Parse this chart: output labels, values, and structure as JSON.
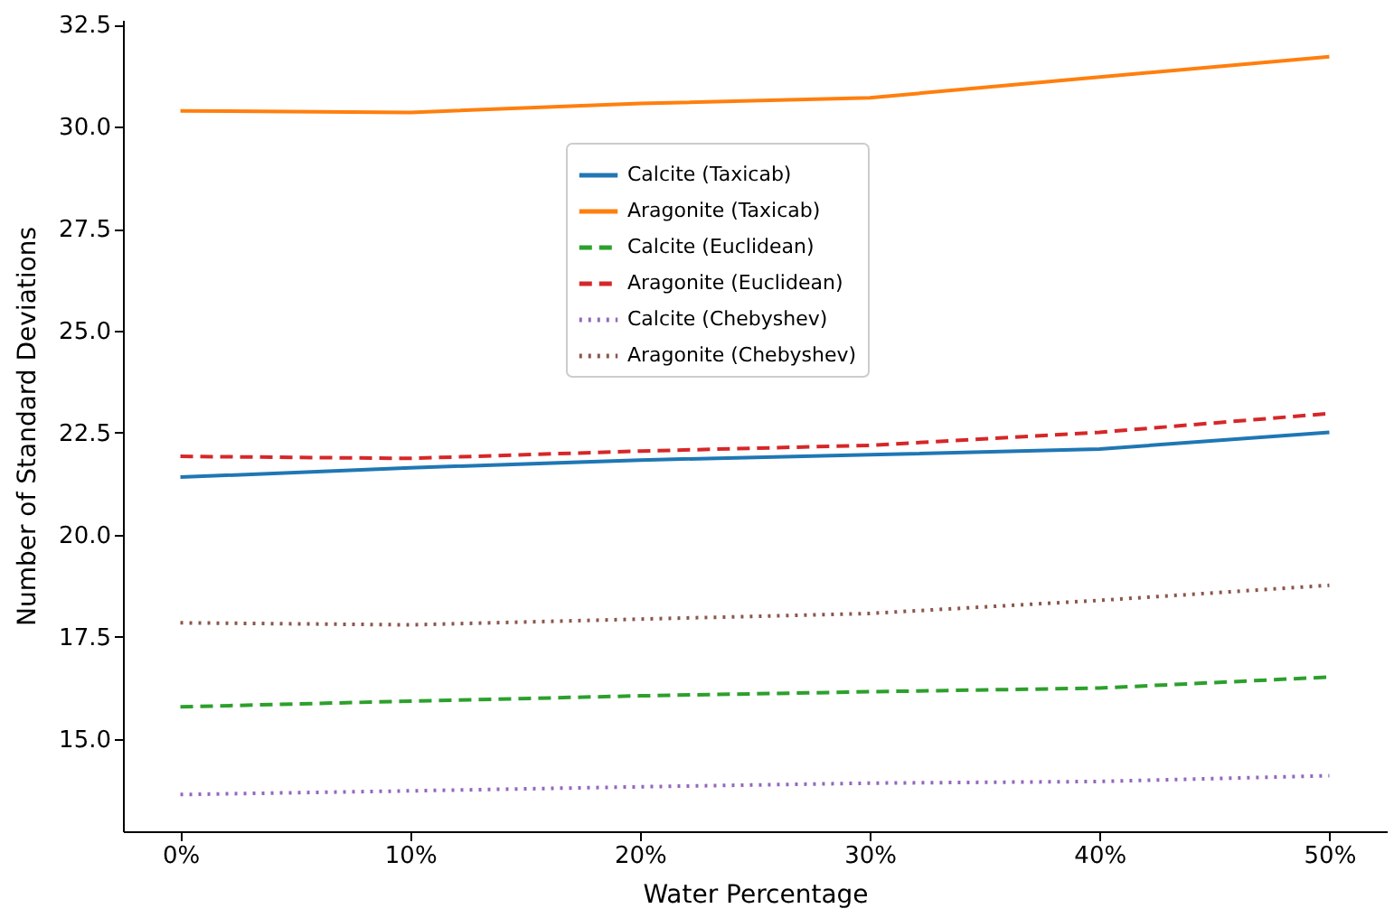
{
  "chart_data": {
    "type": "line",
    "xlabel": "Water Percentage",
    "ylabel": "Number of Standard Deviations",
    "x": [
      0,
      10,
      20,
      30,
      40,
      50
    ],
    "xlim": [
      -2.5,
      52.5
    ],
    "xticks": [
      {
        "value": 0,
        "label": "0%"
      },
      {
        "value": 10,
        "label": "10%"
      },
      {
        "value": 20,
        "label": "20%"
      },
      {
        "value": 30,
        "label": "30%"
      },
      {
        "value": 40,
        "label": "40%"
      },
      {
        "value": 50,
        "label": "50%"
      }
    ],
    "ylim": [
      12.73,
      32.62
    ],
    "yticks": [
      {
        "value": 15,
        "label": "15.0"
      },
      17.5,
      {
        "value": 20,
        "label": "20.0"
      },
      22.5,
      {
        "value": 25,
        "label": "25.0"
      },
      27.5,
      {
        "value": 30,
        "label": "30.0"
      },
      32.5
    ],
    "grid": false,
    "legend": "center",
    "marker": "none",
    "series": [
      {
        "name": "Calcite (Taxicab)",
        "color": "#1f77b4",
        "line_style": "solid",
        "values": [
          21.41,
          21.64,
          21.83,
          21.96,
          22.1,
          22.51
        ]
      },
      {
        "name": "Aragonite (Taxicab)",
        "color": "#ff7f0e",
        "line_style": "solid",
        "values": [
          30.39,
          30.35,
          30.57,
          30.71,
          31.22,
          31.72
        ]
      },
      {
        "name": "Calcite (Euclidean)",
        "color": "#2ca02c",
        "line_style": "dashed",
        "values": [
          15.78,
          15.92,
          16.05,
          16.15,
          16.24,
          16.51
        ]
      },
      {
        "name": "Aragonite (Euclidean)",
        "color": "#d62728",
        "line_style": "dashed",
        "values": [
          21.92,
          21.87,
          22.05,
          22.19,
          22.51,
          22.97
        ]
      },
      {
        "name": "Calcite (Chebyshev)",
        "color": "#9467bd",
        "line_style": "dotted",
        "values": [
          13.63,
          13.72,
          13.82,
          13.91,
          13.95,
          14.09
        ]
      },
      {
        "name": "Aragonite (Chebyshev)",
        "color": "#8c564b",
        "line_style": "dotted",
        "values": [
          17.84,
          17.79,
          17.93,
          18.07,
          18.39,
          18.76
        ]
      }
    ]
  }
}
